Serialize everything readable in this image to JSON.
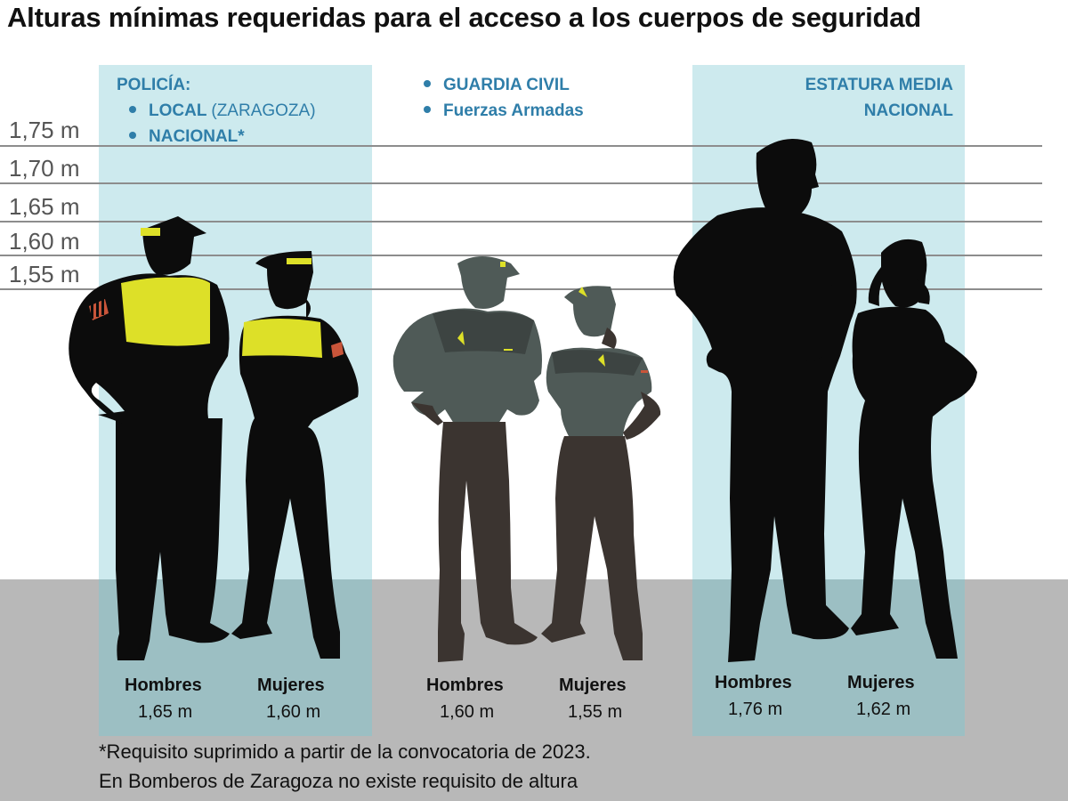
{
  "title": "Alturas mínimas requeridas para el acceso a los cuerpos de seguridad",
  "scale_lines": [
    {
      "label": "1,75 m"
    },
    {
      "label": "1,70 m"
    },
    {
      "label": "1,65 m"
    },
    {
      "label": "1,60 m"
    },
    {
      "label": "1,55 m"
    }
  ],
  "groups": {
    "policia": {
      "heading": "POLICÍA:",
      "item1_bold": "LOCAL",
      "item1_light": "(ZARAGOZA)",
      "item2": "NACIONAL*",
      "men_label": "Hombres",
      "men_value": "1,65 m",
      "women_label": "Mujeres",
      "women_value": "1,60 m"
    },
    "guardia": {
      "item1": "GUARDIA CIVIL",
      "item2": "Fuerzas Armadas",
      "men_label": "Hombres",
      "men_value": "1,60 m",
      "women_label": "Mujeres",
      "women_value": "1,55 m"
    },
    "media": {
      "line1": "ESTATURA MEDIA",
      "line2": "NACIONAL",
      "men_label": "Hombres",
      "men_value": "1,76 m",
      "women_label": "Mujeres",
      "women_value": "1,62 m"
    }
  },
  "footnote_1": "*Requisito suprimido a partir de la convocatoria de 2023.",
  "footnote_2": "En Bomberos de Zaragoza no existe requisito de altura",
  "colors": {
    "panel": "#cdeaee",
    "floor": "#b8b8b8",
    "silhouette": "#0c0c0c",
    "guardia_shirt": "#4f5a57",
    "guardia_pants": "#3b3430",
    "police_vest": "#dde028",
    "label_blue": "#2f7ea9"
  }
}
